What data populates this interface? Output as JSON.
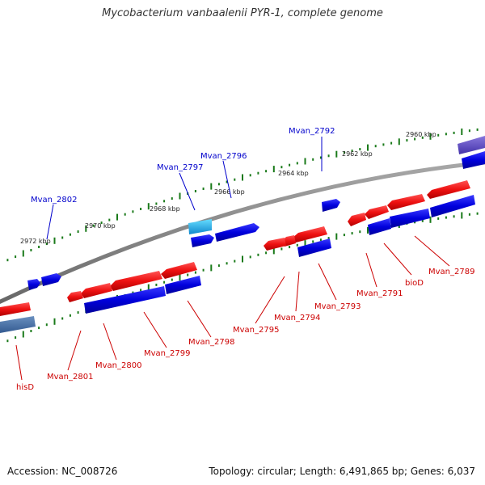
{
  "title": "Mycobacterium vanbaalenii PYR-1, complete genome",
  "footer": {
    "accession": "Accession: NC_008726",
    "topology": "Topology: circular; Length: 6,491,865 bp; Genes: 6,037"
  },
  "colors": {
    "forward_gene": "#0000dd",
    "reverse_gene": "#ee1111",
    "forward_label": "#0000cc",
    "reverse_label": "#cc0000",
    "backbone": "#808080",
    "tick": "#1a7a1a",
    "highlight_gene": "#22aadd",
    "edge_gene": "#6655cc"
  },
  "scale_labels": [
    "2960 kbp",
    "2962 kbp",
    "2964 kbp",
    "2966 kbp",
    "2968 kbp",
    "2970 kbp",
    "2972 kbp"
  ],
  "top_gene_labels": [
    "Mvan_2792",
    "Mvan_2796",
    "Mvan_2797",
    "Mvan_2802"
  ],
  "bottom_gene_labels": [
    "Mvan_2789",
    "bioD",
    "Mvan_2791",
    "Mvan_2793",
    "Mvan_2794",
    "Mvan_2795",
    "Mvan_2798",
    "Mvan_2799",
    "Mvan_2800",
    "Mvan_2801",
    "hisD"
  ]
}
